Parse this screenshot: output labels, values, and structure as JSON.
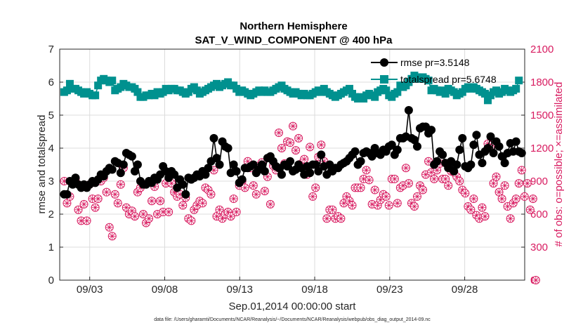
{
  "chart_data": {
    "type": "line",
    "title": "Northern Hemisphere",
    "subtitle": "SAT_V_WIND_COMPONENT @ 400 hPa",
    "xlabel": "Sep.01,2014 00:00:00 start",
    "ylabel": "rmse and totalspread",
    "ylabel_right": "# of obs: o=possible; ×=assimilated",
    "ylim": [
      0,
      7
    ],
    "ylim_right": [
      0,
      2100
    ],
    "xlim_days": [
      0,
      31
    ],
    "y_ticks": [
      "0",
      "1",
      "2",
      "3",
      "4",
      "5",
      "6",
      "7"
    ],
    "y_right_ticks": [
      "0",
      "300",
      "600",
      "900",
      "1200",
      "1500",
      "1800",
      "2100"
    ],
    "x_ticks": [
      {
        "day": 2.0,
        "label": "09/03"
      },
      {
        "day": 7.0,
        "label": "09/08"
      },
      {
        "day": 12.0,
        "label": "09/13"
      },
      {
        "day": 17.0,
        "label": "09/18"
      },
      {
        "day": 22.0,
        "label": "09/23"
      },
      {
        "day": 27.0,
        "label": "09/28"
      }
    ],
    "legend": [
      "rmse pr=3.5148",
      "totalspread pr=5.6748"
    ],
    "legend_location": "top-right",
    "grid": true,
    "footnote": "data file: /Users/gharamti/Documents/NCAR/Reanalysis/~/Documents/NCAR/Reanalysis/webpub/obs_diag_output_2014-09.nc",
    "series": [
      {
        "name": "rmse",
        "axis": "left",
        "color": "#000000",
        "values": [
          2.6,
          2.6,
          3.0,
          2.9,
          3.1,
          2.9,
          2.8,
          2.9,
          2.8,
          2.9,
          3.0,
          2.95,
          3.05,
          3.2,
          3.15,
          3.3,
          3.4,
          3.35,
          3.6,
          3.55,
          3.25,
          3.5,
          3.85,
          3.8,
          3.75,
          3.3,
          3.5,
          3.0,
          2.9,
          2.9,
          3.0,
          2.95,
          3.1,
          3.05,
          3.2,
          3.45,
          3.3,
          3.1,
          3.3,
          3.2,
          2.8,
          3.05,
          2.9,
          2.6,
          3.1,
          3.05,
          3.1,
          3.2,
          3.15,
          3.3,
          3.2,
          3.4,
          3.6,
          4.3,
          3.7,
          3.5,
          4.2,
          4.05,
          4.0,
          3.25,
          3.5,
          3.3,
          2.95,
          3.05,
          3.4,
          3.4,
          3.45,
          3.5,
          3.25,
          3.35,
          3.5,
          3.3,
          3.7,
          3.75,
          3.6,
          3.45,
          3.4,
          3.2,
          3.5,
          3.45,
          3.6,
          3.3,
          3.35,
          3.5,
          3.4,
          3.2,
          3.45,
          3.25,
          3.5,
          3.5,
          3.3,
          3.8,
          3.45,
          3.2,
          3.5,
          3.3,
          3.4,
          3.4,
          3.5,
          3.55,
          3.6,
          3.7,
          3.8,
          3.9,
          3.5,
          3.6,
          3.85,
          3.9,
          3.85,
          3.75,
          4.0,
          3.85,
          3.8,
          3.95,
          3.9,
          4.05,
          4.1,
          3.8,
          3.95,
          4.3,
          4.3,
          4.35,
          5.15,
          4.3,
          4.25,
          4.05,
          4.6,
          4.65,
          4.65,
          4.45,
          4.55,
          3.5,
          3.6,
          3.9,
          3.8,
          3.55,
          3.4,
          3.6,
          3.3,
          3.5,
          3.95,
          4.3,
          3.45,
          3.4,
          3.5,
          4.1,
          4.4,
          3.8,
          3.55,
          3.9,
          4.0,
          4.35,
          3.85,
          4.2,
          4.05,
          3.75,
          3.55,
          3.85,
          4.15,
          3.9,
          4.2,
          3.9,
          3.85
        ]
      },
      {
        "name": "totalspread",
        "axis": "left",
        "color": "#00918f",
        "values": [
          5.7,
          5.75,
          5.95,
          5.8,
          5.8,
          5.75,
          5.7,
          5.65,
          5.7,
          5.65,
          5.6,
          5.6,
          5.9,
          6.05,
          6.1,
          6.05,
          6.0,
          6.05,
          5.75,
          5.8,
          5.85,
          5.95,
          5.9,
          5.85,
          5.85,
          5.8,
          5.7,
          5.55,
          5.55,
          5.6,
          5.6,
          5.65,
          5.6,
          5.7,
          5.65,
          5.7,
          5.8,
          5.75,
          5.8,
          5.8,
          5.75,
          5.75,
          5.7,
          5.65,
          5.7,
          5.8,
          5.85,
          5.75,
          5.65,
          5.7,
          5.75,
          5.8,
          5.85,
          5.9,
          5.95,
          5.85,
          5.9,
          5.95,
          6.0,
          5.9,
          5.9,
          5.8,
          5.7,
          5.75,
          5.7,
          5.65,
          5.6,
          5.65,
          5.7,
          5.75,
          5.7,
          5.75,
          5.7,
          5.7,
          5.75,
          5.8,
          5.85,
          5.9,
          5.8,
          5.75,
          5.7,
          5.65,
          5.7,
          5.65,
          5.6,
          5.65,
          5.6,
          5.6,
          5.65,
          5.7,
          5.75,
          5.7,
          5.8,
          5.7,
          5.65,
          5.6,
          5.55,
          5.6,
          5.65,
          5.7,
          5.75,
          5.8,
          5.65,
          5.55,
          5.5,
          5.55,
          5.5,
          5.6,
          5.65,
          5.6,
          5.55,
          5.7,
          5.75,
          5.8,
          5.75,
          5.6,
          5.55,
          5.65,
          5.7,
          5.9,
          5.85,
          5.9,
          6.0,
          6.1,
          6.2,
          6.15,
          6.1,
          6.15,
          6.1,
          6.05,
          5.75,
          5.8,
          5.75,
          5.7,
          5.75,
          5.65,
          5.8,
          5.75,
          5.7,
          5.6,
          5.65,
          5.7,
          5.8,
          5.85,
          5.8,
          5.85,
          5.8,
          5.75,
          5.7,
          5.65,
          5.45,
          5.6,
          5.7,
          5.75,
          5.65,
          5.7,
          5.8,
          5.75,
          5.7,
          5.75,
          5.8,
          6.05
        ]
      },
      {
        "name": "possible",
        "axis": "right",
        "color": "#d81b60",
        "marker": "circle",
        "values": [
          900,
          700,
          760,
          880,
          920,
          640,
          540,
          690,
          540,
          870,
          740,
          660,
          740,
          900,
          930,
          800,
          480,
          400,
          780,
          700,
          870,
          1020,
          660,
          600,
          630,
          580,
          800,
          840,
          600,
          520,
          560,
          720,
          850,
          600,
          720,
          620,
          880,
          620,
          880,
          800,
          760,
          780,
          680,
          750,
          560,
          540,
          640,
          680,
          720,
          700,
          840,
          820,
          780,
          1000,
          580,
          640,
          560,
          600,
          620,
          580,
          740,
          620,
          860,
          900,
          840,
          1080,
          1020,
          860,
          780,
          1040,
          1070,
          810,
          940,
          690,
          1040,
          1000,
          1340,
          1200,
          1060,
          1260,
          1250,
          1400,
          1180,
          1290,
          1060,
          1100,
          960,
          1210,
          760,
          840,
          1120,
          1230,
          1080,
          560,
          640,
          640,
          560,
          580,
          560,
          700,
          760,
          720,
          680,
          840,
          840,
          840,
          920,
          1000,
          910,
          690,
          820,
          680,
          730,
          780,
          760,
          680,
          920,
          920,
          700,
          840,
          860,
          1020,
          880,
          700,
          670,
          760,
          860,
          820,
          960,
          1080,
          980,
          920,
          1000,
          1060,
          920,
          920,
          860,
          990,
          980,
          940,
          900,
          820,
          790,
          670,
          640,
          740,
          590,
          560,
          660,
          580,
          1240,
          1200,
          880,
          940,
          800,
          740,
          860,
          670,
          560,
          700,
          740,
          880,
          1000,
          760,
          880,
          640,
          740,
          0
        ]
      },
      {
        "name": "assimilated",
        "axis": "right",
        "color": "#d81b60",
        "marker": "x",
        "values": [
          900,
          700,
          760,
          880,
          920,
          640,
          540,
          690,
          540,
          870,
          740,
          660,
          740,
          900,
          930,
          800,
          480,
          400,
          780,
          700,
          870,
          1020,
          660,
          600,
          630,
          580,
          800,
          840,
          600,
          520,
          560,
          720,
          850,
          600,
          720,
          620,
          880,
          620,
          880,
          800,
          760,
          780,
          680,
          750,
          560,
          540,
          640,
          680,
          720,
          700,
          840,
          820,
          780,
          1000,
          580,
          640,
          560,
          600,
          620,
          580,
          740,
          620,
          860,
          900,
          840,
          1080,
          1020,
          860,
          780,
          1040,
          1070,
          810,
          940,
          690,
          1040,
          1000,
          1340,
          1200,
          1060,
          1260,
          1250,
          1400,
          1180,
          1290,
          1060,
          1100,
          960,
          1210,
          760,
          840,
          1120,
          1230,
          1080,
          560,
          640,
          640,
          560,
          580,
          560,
          700,
          760,
          720,
          680,
          840,
          840,
          840,
          920,
          1000,
          910,
          690,
          820,
          680,
          730,
          780,
          760,
          680,
          920,
          920,
          700,
          840,
          860,
          1020,
          880,
          700,
          670,
          760,
          860,
          820,
          960,
          1080,
          980,
          920,
          1000,
          1060,
          920,
          920,
          860,
          990,
          980,
          940,
          900,
          820,
          790,
          670,
          640,
          740,
          590,
          560,
          660,
          580,
          1240,
          1200,
          880,
          940,
          800,
          740,
          860,
          670,
          560,
          700,
          740,
          880,
          1000,
          760,
          880,
          640,
          740,
          0
        ]
      }
    ]
  }
}
